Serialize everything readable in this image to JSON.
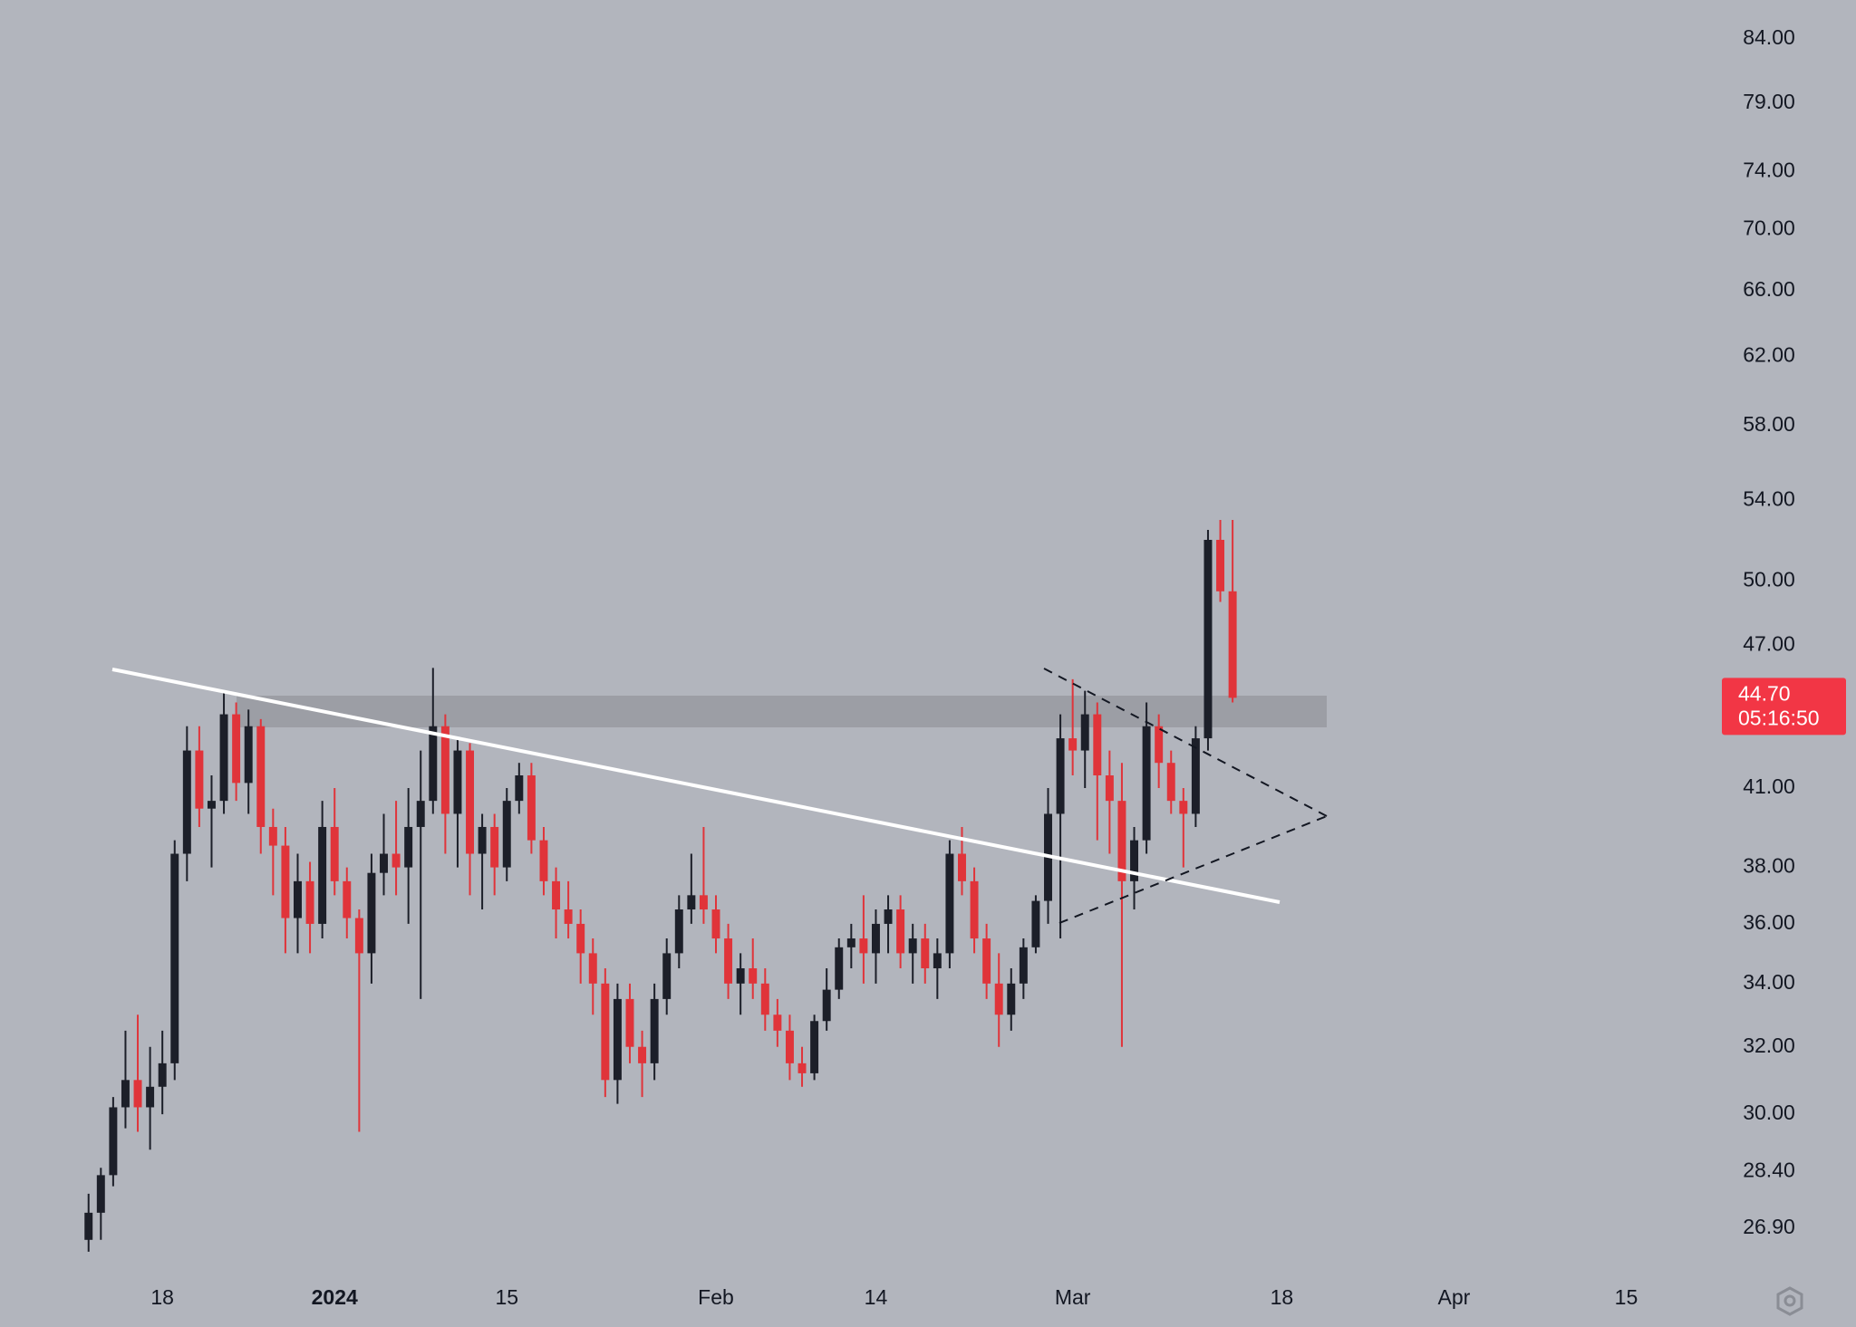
{
  "chart_data": {
    "type": "candlestick",
    "log_scale": true,
    "grid": false,
    "up_color": "#1c1f29",
    "down_color": "#e0343a",
    "xlim": [
      -7.2,
      131.3
    ],
    "ylim": [
      25.8,
      87.2
    ],
    "xticks": [
      {
        "value": 6,
        "label": "18"
      },
      {
        "value": 20,
        "label": "2024"
      },
      {
        "value": 34,
        "label": "15"
      },
      {
        "value": 51,
        "label": "Feb"
      },
      {
        "value": 64,
        "label": "14"
      },
      {
        "value": 80,
        "label": "Mar"
      },
      {
        "value": 97,
        "label": "18"
      },
      {
        "value": 111,
        "label": "Apr"
      },
      {
        "value": 125,
        "label": "15"
      }
    ],
    "yticks": [
      {
        "value": 84,
        "label": "84.00"
      },
      {
        "value": 79,
        "label": "79.00"
      },
      {
        "value": 74,
        "label": "74.00"
      },
      {
        "value": 70,
        "label": "70.00"
      },
      {
        "value": 66,
        "label": "66.00"
      },
      {
        "value": 62,
        "label": "62.00"
      },
      {
        "value": 58,
        "label": "58.00"
      },
      {
        "value": 54,
        "label": "54.00"
      },
      {
        "value": 50,
        "label": "50.00"
      },
      {
        "value": 47,
        "label": "47.00"
      },
      {
        "value": 41,
        "label": "41.00"
      },
      {
        "value": 38,
        "label": "38.00"
      },
      {
        "value": 36,
        "label": "36.00"
      },
      {
        "value": 34,
        "label": "34.00"
      },
      {
        "value": 32,
        "label": "32.00"
      },
      {
        "value": 30,
        "label": "30.00"
      },
      {
        "value": 28.4,
        "label": "28.40"
      },
      {
        "value": 26.9,
        "label": "26.90"
      }
    ],
    "current_price": {
      "value": 44.7,
      "label": "44.70",
      "color": "#f23645"
    },
    "countdown": "05:16:50",
    "x": [
      0,
      1,
      2,
      3,
      4,
      5,
      6,
      7,
      8,
      9,
      10,
      11,
      12,
      13,
      14,
      15,
      16,
      17,
      18,
      19,
      20,
      21,
      22,
      23,
      24,
      25,
      26,
      27,
      28,
      29,
      30,
      31,
      32,
      33,
      34,
      35,
      36,
      37,
      38,
      39,
      40,
      41,
      42,
      43,
      44,
      45,
      46,
      47,
      48,
      49,
      50,
      51,
      52,
      53,
      54,
      55,
      56,
      57,
      58,
      59,
      60,
      61,
      62,
      63,
      64,
      65,
      66,
      67,
      68,
      69,
      70,
      71,
      72,
      73,
      74,
      75,
      76,
      77,
      78,
      79,
      80,
      81,
      82,
      83,
      84,
      85,
      86,
      87,
      88,
      89,
      90,
      91,
      92,
      93
    ],
    "open": [
      26.6,
      27.3,
      28.3,
      30.2,
      31.0,
      30.2,
      30.8,
      31.5,
      38.5,
      42.5,
      40.2,
      40.5,
      44.0,
      41.2,
      43.5,
      39.5,
      38.8,
      36.2,
      37.5,
      36.0,
      39.5,
      37.5,
      36.2,
      35.0,
      37.8,
      38.5,
      38.0,
      39.5,
      40.5,
      43.5,
      40.0,
      42.5,
      38.5,
      39.5,
      38.0,
      40.5,
      41.5,
      39.0,
      37.5,
      36.5,
      36.0,
      35.0,
      34.0,
      31.0,
      33.5,
      32.0,
      31.5,
      33.5,
      35.0,
      36.5,
      37.0,
      36.5,
      35.5,
      34.0,
      34.5,
      34.0,
      33.0,
      32.5,
      31.5,
      31.2,
      32.8,
      33.8,
      35.2,
      35.5,
      35.0,
      36.0,
      36.5,
      35.0,
      35.5,
      34.5,
      35.0,
      38.5,
      37.5,
      35.5,
      34.0,
      33.0,
      34.0,
      35.2,
      36.8,
      40.0,
      43.0,
      42.5,
      44.0,
      41.5,
      40.5,
      37.5,
      39.0,
      43.5,
      42.0,
      40.5,
      40.0,
      43.0,
      52.0,
      49.5
    ],
    "high": [
      27.8,
      28.5,
      30.5,
      32.5,
      33.0,
      32.0,
      32.5,
      39.0,
      43.5,
      43.5,
      41.5,
      45.0,
      44.5,
      44.2,
      43.8,
      40.2,
      39.5,
      38.5,
      38.2,
      40.5,
      41.0,
      38.0,
      36.5,
      38.5,
      40.0,
      40.5,
      41.0,
      42.5,
      46.0,
      44.0,
      43.0,
      42.8,
      40.0,
      40.0,
      41.0,
      42.0,
      42.0,
      39.5,
      38.0,
      37.5,
      36.5,
      35.5,
      34.5,
      34.0,
      34.0,
      32.5,
      34.0,
      35.5,
      37.0,
      38.5,
      39.5,
      37.0,
      36.0,
      35.0,
      35.5,
      34.5,
      33.5,
      33.0,
      32.0,
      33.0,
      34.5,
      35.5,
      36.0,
      37.0,
      36.5,
      37.0,
      37.0,
      36.0,
      36.0,
      35.5,
      39.0,
      39.5,
      38.0,
      36.0,
      35.0,
      34.5,
      35.5,
      37.0,
      41.0,
      44.0,
      45.5,
      45.0,
      44.5,
      42.5,
      42.0,
      39.5,
      44.5,
      44.0,
      42.5,
      41.0,
      43.5,
      52.5,
      53.0,
      53.0
    ],
    "low": [
      26.3,
      26.6,
      28.0,
      29.6,
      29.5,
      29.0,
      30.0,
      31.0,
      37.5,
      39.5,
      38.0,
      40.0,
      40.5,
      40.0,
      38.5,
      37.0,
      35.0,
      35.0,
      35.0,
      35.5,
      37.0,
      35.5,
      29.5,
      34.0,
      37.0,
      37.0,
      36.0,
      33.5,
      40.0,
      38.5,
      38.0,
      37.0,
      36.5,
      37.0,
      37.5,
      40.0,
      38.5,
      37.0,
      35.5,
      35.5,
      34.0,
      33.0,
      30.5,
      30.3,
      31.5,
      30.5,
      31.0,
      33.0,
      34.5,
      36.0,
      36.0,
      35.0,
      33.5,
      33.0,
      33.5,
      32.5,
      32.0,
      31.0,
      30.8,
      31.0,
      32.5,
      33.5,
      34.5,
      34.0,
      34.0,
      35.0,
      34.5,
      34.0,
      34.0,
      33.5,
      34.5,
      37.0,
      35.0,
      33.5,
      32.0,
      32.5,
      33.5,
      35.0,
      36.0,
      35.5,
      41.5,
      41.0,
      39.0,
      38.5,
      32.0,
      36.5,
      38.5,
      41.0,
      40.0,
      38.0,
      39.5,
      42.5,
      49.0,
      44.5
    ],
    "close": [
      27.3,
      28.3,
      30.2,
      31.0,
      30.2,
      30.8,
      31.5,
      38.5,
      42.5,
      40.2,
      40.5,
      44.0,
      41.2,
      43.5,
      39.5,
      38.8,
      36.2,
      37.5,
      36.0,
      39.5,
      37.5,
      36.2,
      35.0,
      37.8,
      38.5,
      38.0,
      39.5,
      40.5,
      43.5,
      40.0,
      42.5,
      38.5,
      39.5,
      38.0,
      40.5,
      41.5,
      39.0,
      37.5,
      36.5,
      36.0,
      35.0,
      34.0,
      31.0,
      33.5,
      32.0,
      31.5,
      33.5,
      35.0,
      36.5,
      37.0,
      36.5,
      35.5,
      34.0,
      34.5,
      34.0,
      33.0,
      32.5,
      31.5,
      31.2,
      32.8,
      33.8,
      35.2,
      35.5,
      35.0,
      36.0,
      36.5,
      35.0,
      35.5,
      34.5,
      35.0,
      38.5,
      37.5,
      35.5,
      34.0,
      33.0,
      34.0,
      35.2,
      36.8,
      40.0,
      43.0,
      42.5,
      44.0,
      41.5,
      40.5,
      37.5,
      39.0,
      43.5,
      42.0,
      40.5,
      40.0,
      43.0,
      52.0,
      49.5,
      44.7
    ]
  }
}
